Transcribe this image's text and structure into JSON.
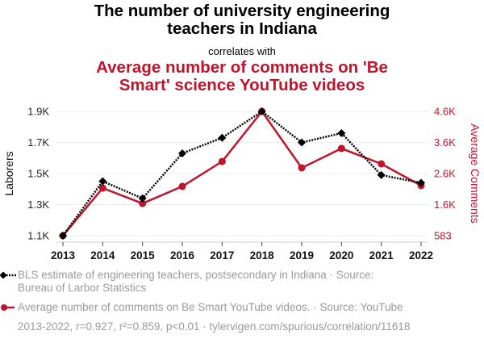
{
  "header": {
    "title_line1": "The number of university engineering",
    "title_line2": "teachers in Indiana",
    "correlates_with": "correlates with",
    "subtitle_line1": "Average number of comments on 'Be",
    "subtitle_line2": "Smart' science YouTube videos"
  },
  "colors": {
    "series1": "#000000",
    "series2": "#c0132c",
    "grid": "#eeeeee",
    "legend_text": "#9a9a9a"
  },
  "chart_data": {
    "type": "line",
    "title": "The number of university engineering teachers in Indiana correlates with Average number of comments on 'Be Smart' science YouTube videos",
    "x": [
      2013,
      2014,
      2015,
      2016,
      2017,
      2018,
      2019,
      2020,
      2021,
      2022
    ],
    "x_tick_labels": [
      "2013",
      "2014",
      "2015",
      "2016",
      "2017",
      "2018",
      "2019",
      "2020",
      "2021",
      "2022"
    ],
    "series": [
      {
        "name": "BLS estimate of engineering teachers, postsecondary in Indiana",
        "axis": "left",
        "style": "dotted",
        "marker": "diamond",
        "values": [
          1100,
          1450,
          1340,
          1630,
          1730,
          1900,
          1700,
          1760,
          1490,
          1440
        ]
      },
      {
        "name": "Average number of comments on Be Smart YouTube videos.",
        "axis": "right",
        "style": "solid",
        "marker": "circle",
        "values": [
          583,
          2115,
          1620,
          2170,
          2970,
          4583,
          2765,
          3390,
          2895,
          2195
        ]
      }
    ],
    "ylabel_left": "Laborers",
    "ylabel_right": "Average Comments",
    "ylim_left": [
      1100,
      1900
    ],
    "ylim_right": [
      583,
      4583
    ],
    "yticks_left": [
      {
        "value": 1100,
        "label": "1.1K"
      },
      {
        "value": 1300,
        "label": "1.3K"
      },
      {
        "value": 1500,
        "label": "1.5K"
      },
      {
        "value": 1700,
        "label": "1.7K"
      },
      {
        "value": 1900,
        "label": "1.9K"
      }
    ],
    "yticks_right": [
      {
        "value": 583,
        "label": "583"
      },
      {
        "value": 1583,
        "label": "1.6K"
      },
      {
        "value": 2583,
        "label": "2.6K"
      },
      {
        "value": 3583,
        "label": "3.6K"
      },
      {
        "value": 4583,
        "label": "4.6K"
      }
    ],
    "grid": true,
    "legend_position": "bottom"
  },
  "legend": {
    "item1_line1": "BLS estimate of engineering teachers, postsecondary in Indiana · Source:",
    "item1_line2": "Bureau of Larbor Statistics",
    "item2": "Average number of comments on Be Smart YouTube videos. · Source: YouTube"
  },
  "footer": "2013-2022, r=0.927, r²=0.859, p<0.01 · tylervigen.com/spurious/correlation/11618"
}
